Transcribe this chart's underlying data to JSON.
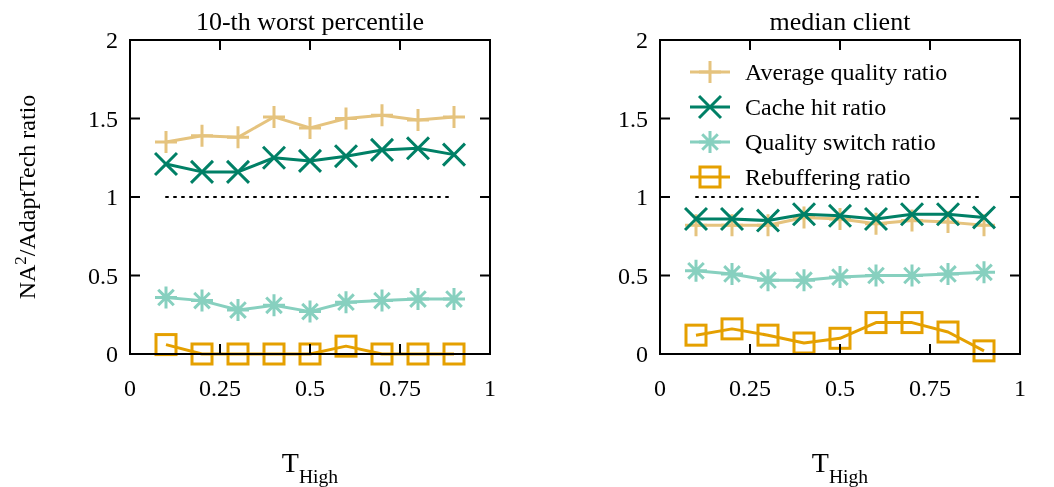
{
  "chart_data": [
    {
      "type": "line",
      "title": "10-th worst percentile",
      "xlabel": "T$_{High}$",
      "ylabel": "NA$^{2}$/AdaptTech ratio",
      "x": [
        0.1,
        0.2,
        0.3,
        0.4,
        0.5,
        0.6,
        0.7,
        0.8,
        0.9
      ],
      "series": [
        {
          "color": "#e5c37e",
          "marker": "plus",
          "values": [
            1.35,
            1.39,
            1.38,
            1.51,
            1.44,
            1.5,
            1.52,
            1.49,
            1.51
          ]
        },
        {
          "color": "#008066",
          "marker": "cross",
          "values": [
            1.21,
            1.16,
            1.16,
            1.25,
            1.23,
            1.26,
            1.3,
            1.31,
            1.27
          ]
        },
        {
          "color": "#87d0bf",
          "marker": "star",
          "values": [
            0.36,
            0.34,
            0.28,
            0.31,
            0.27,
            0.33,
            0.34,
            0.35,
            0.35
          ]
        },
        {
          "color": "#e5a000",
          "marker": "square",
          "values": [
            0.06,
            0,
            0,
            0,
            0,
            0.05,
            0,
            0,
            0
          ]
        }
      ],
      "xlim": [
        0,
        1
      ],
      "xticks": [
        0,
        0.25,
        0.5,
        0.75,
        1
      ],
      "ylim": [
        0,
        2
      ],
      "yticks": [
        0,
        0.5,
        1,
        1.5,
        2
      ],
      "ref_lines": [
        {
          "axis": "y",
          "value": 1,
          "color": "#000000",
          "line_style": "dotted"
        }
      ],
      "grid": false,
      "legend": false
    },
    {
      "type": "line",
      "title": "median client",
      "xlabel": "T$_{High}$",
      "x": [
        0.1,
        0.2,
        0.3,
        0.4,
        0.5,
        0.6,
        0.7,
        0.8,
        0.9
      ],
      "series": [
        {
          "name": "Average quality ratio",
          "color": "#e5c37e",
          "marker": "plus",
          "values": [
            0.82,
            0.82,
            0.82,
            0.87,
            0.86,
            0.83,
            0.85,
            0.84,
            0.82
          ]
        },
        {
          "name": "Cache hit ratio",
          "color": "#008066",
          "marker": "cross",
          "values": [
            0.86,
            0.86,
            0.85,
            0.89,
            0.88,
            0.86,
            0.89,
            0.89,
            0.87
          ]
        },
        {
          "name": "Quality switch ratio",
          "color": "#87d0bf",
          "marker": "star",
          "values": [
            0.53,
            0.51,
            0.47,
            0.47,
            0.49,
            0.5,
            0.5,
            0.51,
            0.52
          ]
        },
        {
          "name": "Rebuffering ratio",
          "color": "#e5a000",
          "marker": "square",
          "values": [
            0.12,
            0.16,
            0.12,
            0.07,
            0.1,
            0.2,
            0.2,
            0.14,
            0.02
          ]
        }
      ],
      "xlim": [
        0,
        1
      ],
      "xticks": [
        0,
        0.25,
        0.5,
        0.75,
        1
      ],
      "ylim": [
        0,
        2
      ],
      "yticks": [
        0,
        0.5,
        1,
        1.5,
        2
      ],
      "ref_lines": [
        {
          "axis": "y",
          "value": 1,
          "color": "#000000",
          "line_style": "dotted"
        }
      ],
      "grid": false,
      "legend": "top"
    }
  ]
}
